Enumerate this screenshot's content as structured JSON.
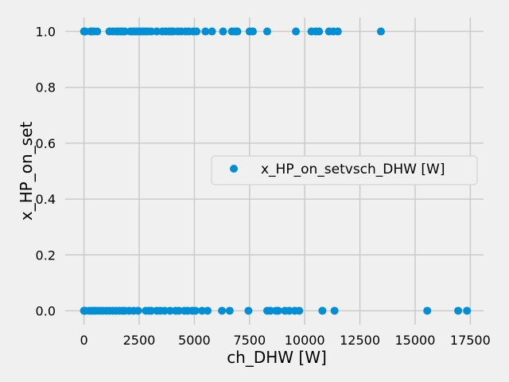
{
  "chart_data": {
    "type": "scatter",
    "title": "",
    "xlabel": "ch_DHW [W]",
    "ylabel": "x_HP_on_set",
    "xlim": [
      -850,
      18100
    ],
    "ylim": [
      -0.05,
      1.05
    ],
    "xticks": [
      0,
      2500,
      5000,
      7500,
      10000,
      12500,
      15000,
      17500
    ],
    "yticks": [
      0.0,
      0.2,
      0.4,
      0.6,
      0.8,
      1.0
    ],
    "xtick_labels": [
      "0",
      "2500",
      "5000",
      "7500",
      "10000",
      "12500",
      "15000",
      "17500"
    ],
    "ytick_labels": [
      "0.0",
      "0.2",
      "0.4",
      "0.6",
      "0.8",
      "1.0"
    ],
    "grid": true,
    "legend_position": "center-right",
    "colors": {
      "series": "#008fd5",
      "background": "#f0f0f0",
      "grid": "#cbcbcb"
    },
    "series": [
      {
        "name": "x_HP_on_setvsch_DHW [W]",
        "x": [
          0,
          20,
          40,
          60,
          300,
          350,
          450,
          600,
          1150,
          1300,
          1450,
          1550,
          1650,
          1750,
          1850,
          2100,
          2200,
          2300,
          2400,
          2500,
          2600,
          2700,
          2800,
          2900,
          3050,
          3300,
          3550,
          3700,
          3850,
          3950,
          4050,
          4250,
          4400,
          4600,
          4750,
          4950,
          5100,
          5500,
          5800,
          6300,
          6700,
          6850,
          6950,
          7500,
          7650,
          8300,
          9600,
          10300,
          10500,
          10650,
          11100,
          11300,
          11500,
          13450,
          0,
          20,
          40,
          60,
          250,
          350,
          450,
          550,
          700,
          850,
          1000,
          1150,
          1300,
          1450,
          1600,
          1750,
          1850,
          2050,
          2250,
          2450,
          2800,
          2950,
          3050,
          3300,
          3450,
          3650,
          3900,
          4150,
          4300,
          4550,
          4700,
          4900,
          5050,
          5350,
          5600,
          6250,
          6600,
          7450,
          8300,
          8450,
          8700,
          8800,
          9100,
          9300,
          9550,
          9750,
          10800,
          11350,
          15550,
          16950,
          17350
        ],
        "y": [
          1,
          1,
          1,
          1,
          1,
          1,
          1,
          1,
          1,
          1,
          1,
          1,
          1,
          1,
          1,
          1,
          1,
          1,
          1,
          1,
          1,
          1,
          1,
          1,
          1,
          1,
          1,
          1,
          1,
          1,
          1,
          1,
          1,
          1,
          1,
          1,
          1,
          1,
          1,
          1,
          1,
          1,
          1,
          1,
          1,
          1,
          1,
          1,
          1,
          1,
          1,
          1,
          1,
          1,
          0,
          0,
          0,
          0,
          0,
          0,
          0,
          0,
          0,
          0,
          0,
          0,
          0,
          0,
          0,
          0,
          0,
          0,
          0,
          0,
          0,
          0,
          0,
          0,
          0,
          0,
          0,
          0,
          0,
          0,
          0,
          0,
          0,
          0,
          0,
          0,
          0,
          0,
          0,
          0,
          0,
          0,
          0,
          0,
          0,
          0,
          0,
          0,
          0,
          0,
          0
        ]
      }
    ]
  }
}
